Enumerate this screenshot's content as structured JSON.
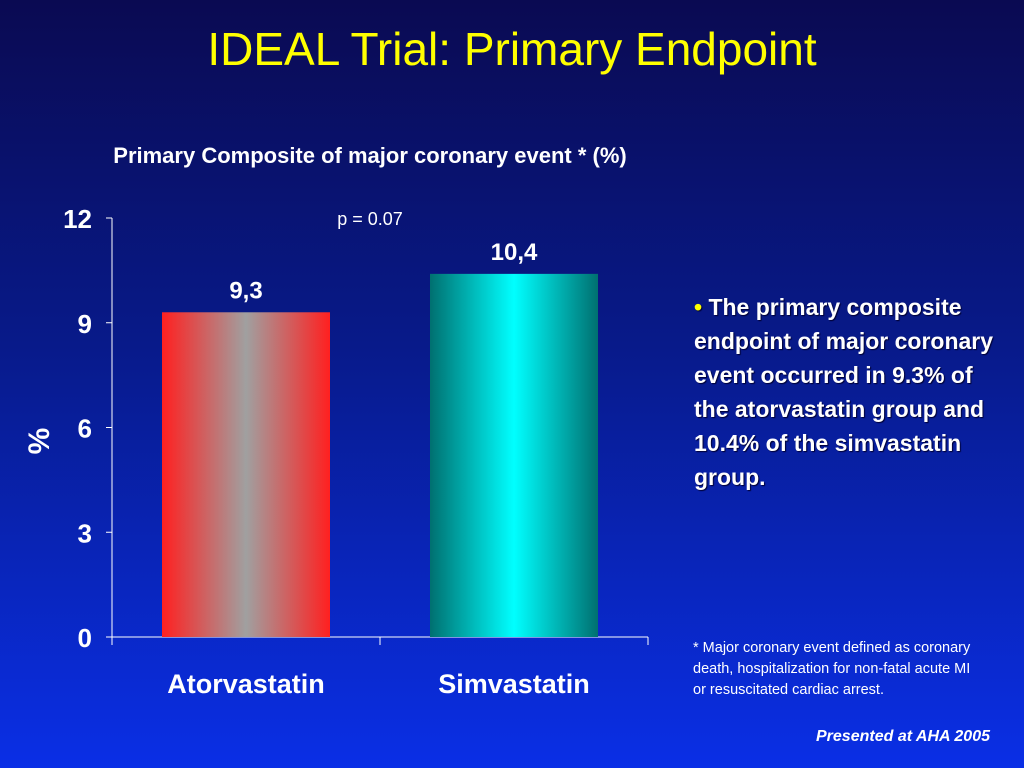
{
  "slide": {
    "title": "IDEAL Trial: Primary Endpoint",
    "bullet": "The primary composite endpoint of major coronary event occurred in 9.3% of the atorvastatin group and 10.4% of the simvastatin group.",
    "bullet_marker": "•",
    "footnote": "* Major coronary event defined as coronary death, hospitalization for non-fatal acute MI or resuscitated cardiac arrest.",
    "presented": "Presented at AHA 2005"
  },
  "chart_data": {
    "type": "bar",
    "title": "Primary Composite of major coronary event * (%)",
    "subtitle": "p = 0.07",
    "ylabel": "%",
    "xlabel": "",
    "categories": [
      "Atorvastatin",
      "Simvastatin"
    ],
    "values": [
      9.3,
      10.4
    ],
    "data_labels": [
      "9,3",
      "10,4"
    ],
    "ylim": [
      0,
      12
    ],
    "yticks": [
      0,
      3,
      6,
      9,
      12
    ],
    "grid": false,
    "legend": "none",
    "colors": {
      "atorvastatin_edge": "#ff2020",
      "atorvastatin_center": "#a0a0a0",
      "simvastatin_edge": "#007070",
      "simvastatin_center": "#00ffff",
      "axis": "#ffffff"
    }
  }
}
